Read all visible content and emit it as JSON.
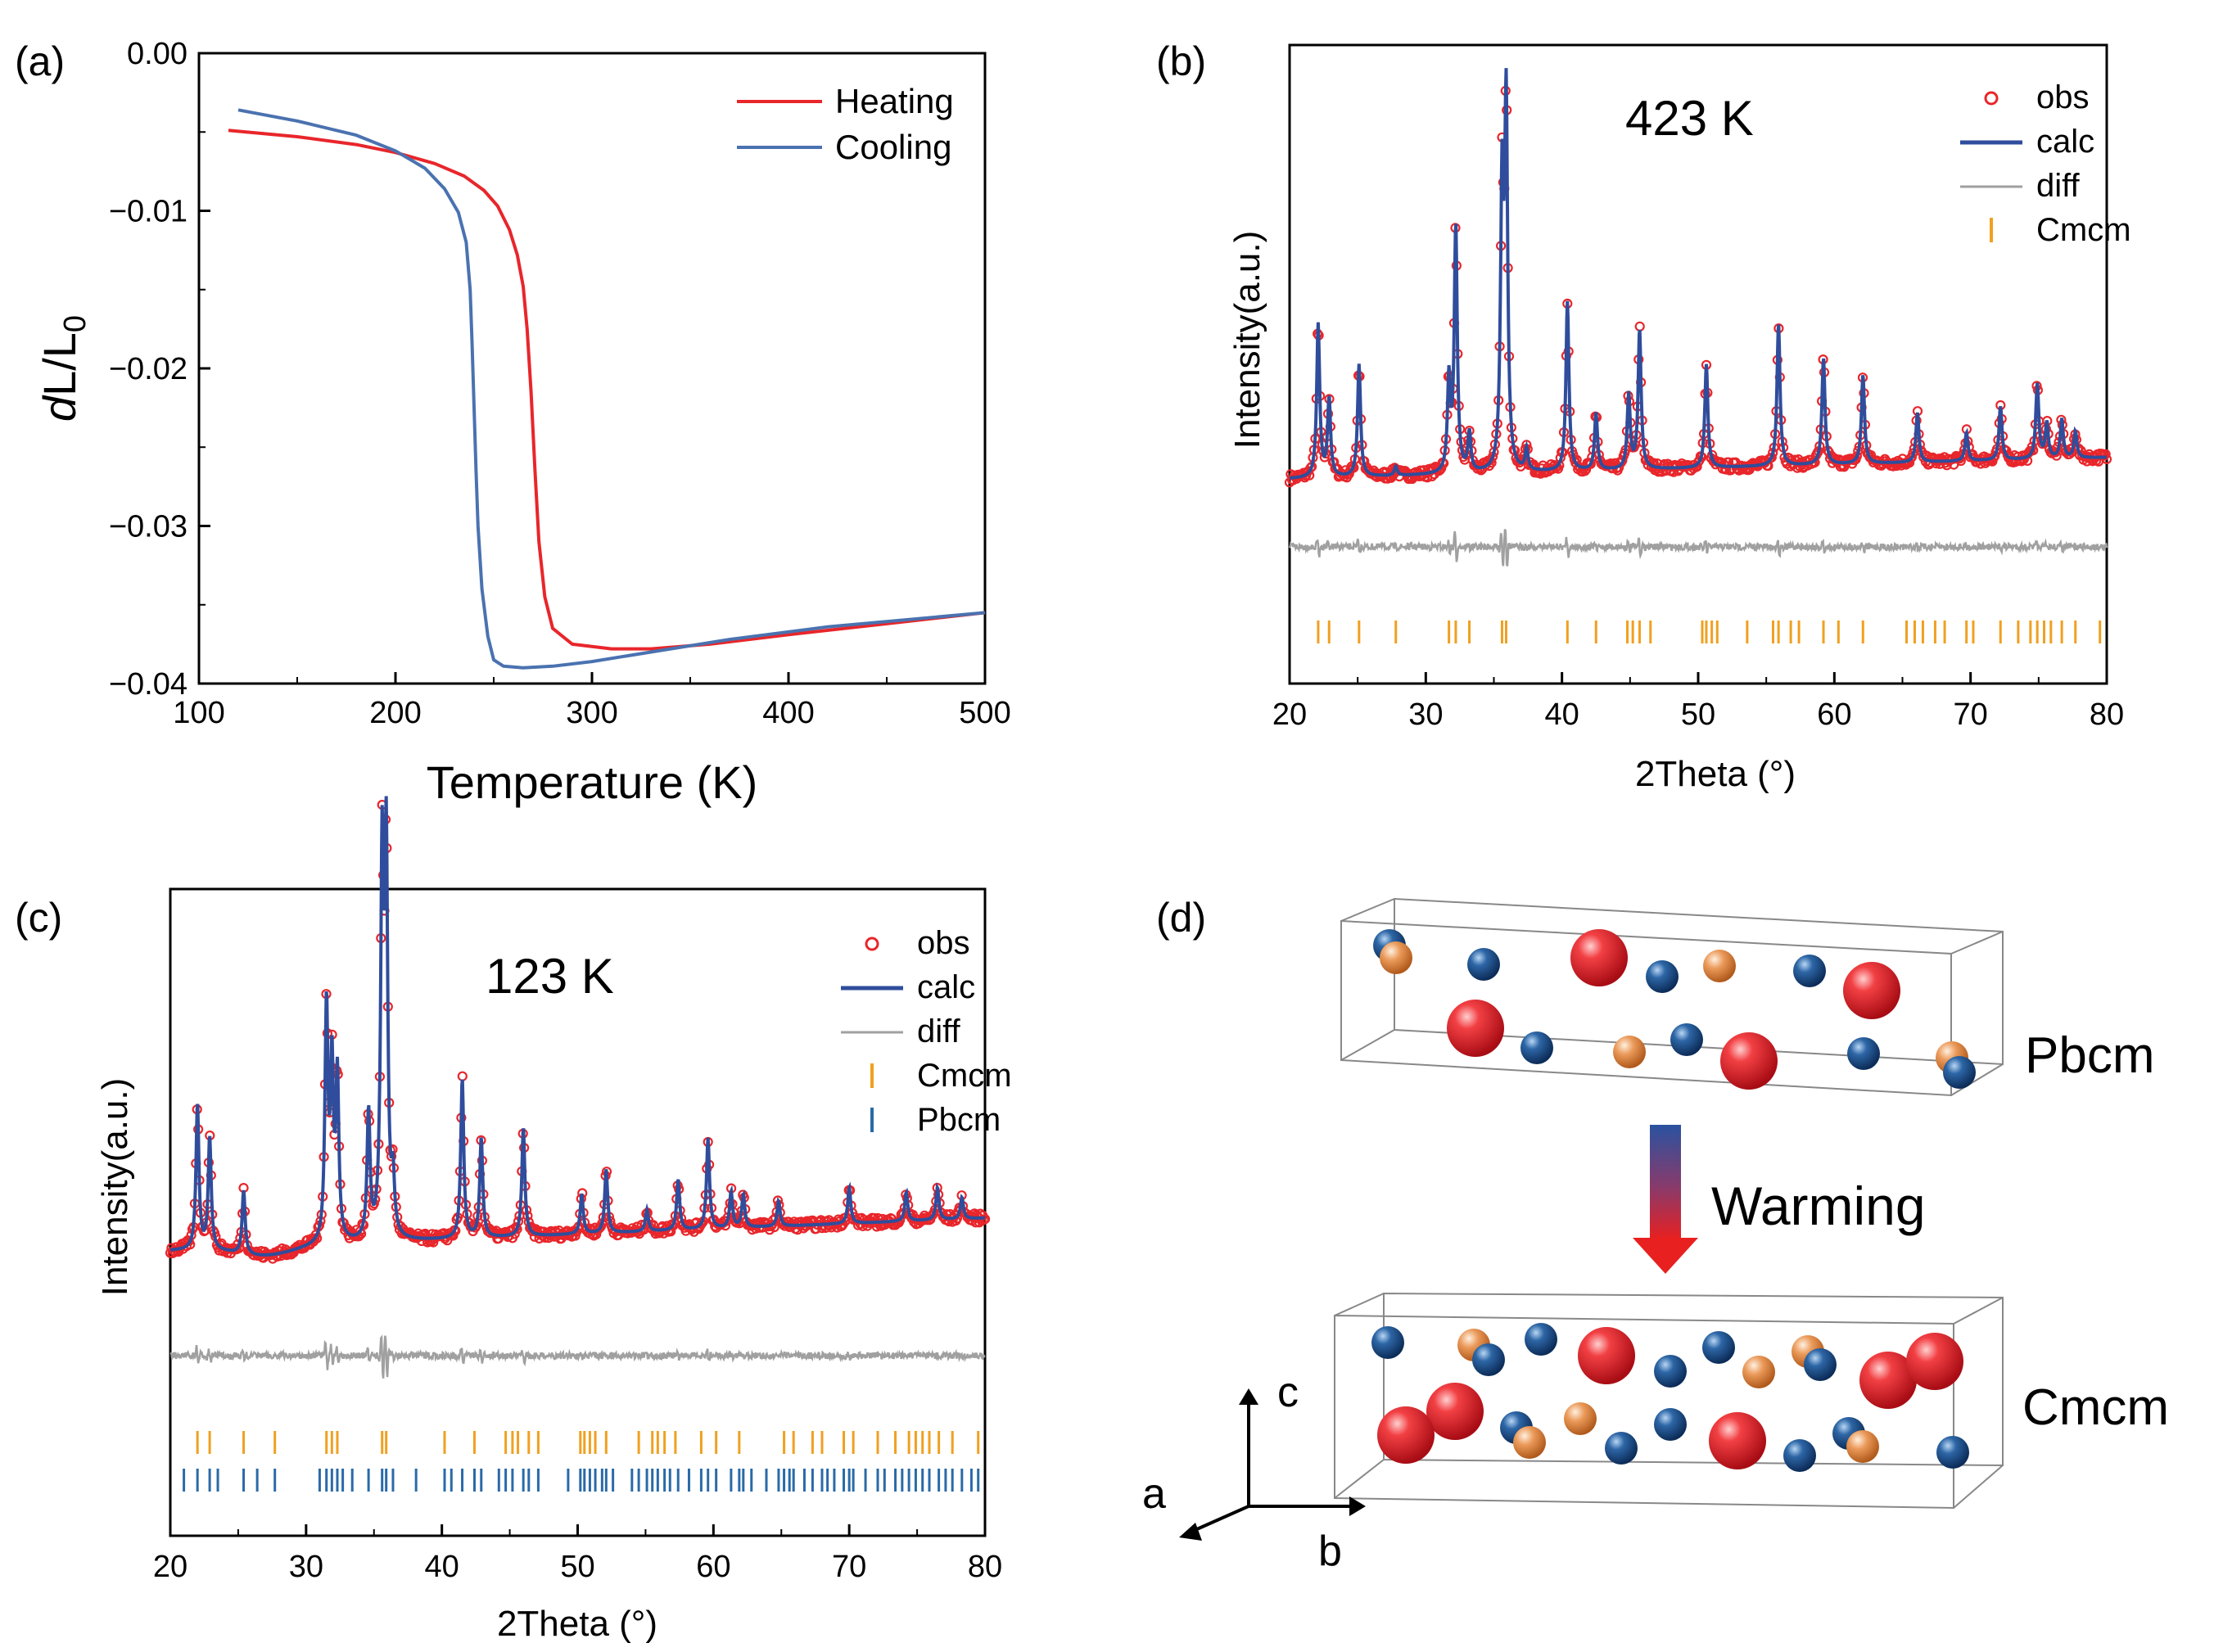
{
  "panels": {
    "a": {
      "letter": "(a)",
      "chart_data": {
        "type": "line",
        "xlabel": "Temperature (K)",
        "ylabel_main": "dL/L",
        "ylabel_sub": "0",
        "xlim": [
          100,
          500
        ],
        "ylim": [
          -0.04,
          0.0
        ],
        "xticks": [
          100,
          200,
          300,
          400,
          500
        ],
        "xtick_labels": [
          "100",
          "200",
          "300",
          "400",
          "500"
        ],
        "yticks": [
          0.0,
          -0.01,
          -0.02,
          -0.03,
          -0.04
        ],
        "ytick_labels": [
          "0.00",
          "−0.01",
          "−0.02",
          "−0.03",
          "−0.04"
        ],
        "series": [
          {
            "name": "Heating",
            "color": "#e8262b",
            "x": [
              115,
              150,
              180,
              200,
              220,
              235,
              245,
              252,
              258,
              262,
              265,
              267,
              269,
              271,
              273,
              276,
              280,
              290,
              310,
              330,
              360,
              400,
              450,
              500
            ],
            "y": [
              -0.0049,
              -0.0053,
              -0.0058,
              -0.0063,
              -0.007,
              -0.0078,
              -0.0087,
              -0.0097,
              -0.0112,
              -0.0128,
              -0.0148,
              -0.0175,
              -0.0215,
              -0.0265,
              -0.031,
              -0.0345,
              -0.0365,
              -0.0375,
              -0.0378,
              -0.0378,
              -0.0375,
              -0.0369,
              -0.0362,
              -0.0355
            ]
          },
          {
            "name": "Cooling",
            "color": "#4a72b0",
            "x": [
              120,
              150,
              180,
              200,
              215,
              225,
              232,
              236,
              238,
              239,
              240,
              241,
              242,
              244,
              247,
              250,
              255,
              265,
              280,
              300,
              330,
              370,
              420,
              500
            ],
            "y": [
              -0.0036,
              -0.0043,
              -0.0052,
              -0.0062,
              -0.0073,
              -0.0086,
              -0.0101,
              -0.012,
              -0.015,
              -0.0185,
              -0.0225,
              -0.0265,
              -0.03,
              -0.034,
              -0.037,
              -0.0385,
              -0.0389,
              -0.039,
              -0.0389,
              -0.0386,
              -0.038,
              -0.0372,
              -0.0364,
              -0.0355
            ]
          }
        ]
      }
    },
    "b": {
      "letter": "(b)",
      "annotation": "423 K",
      "chart_data": {
        "type": "line",
        "xlabel": "2Theta (°)",
        "ylabel": "Intensity(a.u.)",
        "xlim": [
          20,
          80
        ],
        "xticks": [
          20,
          30,
          40,
          50,
          60,
          70,
          80
        ],
        "xtick_labels": [
          "20",
          "30",
          "40",
          "50",
          "60",
          "70",
          "80"
        ],
        "legend": [
          "obs",
          "calc",
          "diff",
          "Cmcm"
        ],
        "colors": {
          "obs": "#e8262b",
          "calc": "#2f4d9c",
          "diff": "#a0a0a0",
          "Cmcm": "#f0a020"
        },
        "baseline": 0.0,
        "baseline_slope": 0.002,
        "peaks": [
          {
            "pos": 22.1,
            "height": 0.86
          },
          {
            "pos": 22.9,
            "height": 0.44
          },
          {
            "pos": 25.1,
            "height": 0.63
          },
          {
            "pos": 27.8,
            "height": 0.05
          },
          {
            "pos": 31.7,
            "height": 0.52
          },
          {
            "pos": 32.2,
            "height": 1.38
          },
          {
            "pos": 33.2,
            "height": 0.22
          },
          {
            "pos": 35.6,
            "height": 1.55
          },
          {
            "pos": 35.9,
            "height": 2.02
          },
          {
            "pos": 37.4,
            "height": 0.12
          },
          {
            "pos": 40.4,
            "height": 0.95
          },
          {
            "pos": 42.5,
            "height": 0.32
          },
          {
            "pos": 44.9,
            "height": 0.42
          },
          {
            "pos": 45.7,
            "height": 0.78
          },
          {
            "pos": 50.6,
            "height": 0.58
          },
          {
            "pos": 55.9,
            "height": 0.8
          },
          {
            "pos": 59.2,
            "height": 0.6
          },
          {
            "pos": 62.1,
            "height": 0.5
          },
          {
            "pos": 66.1,
            "height": 0.28
          },
          {
            "pos": 69.7,
            "height": 0.16
          },
          {
            "pos": 72.2,
            "height": 0.3
          },
          {
            "pos": 74.9,
            "height": 0.42
          },
          {
            "pos": 75.6,
            "height": 0.2
          },
          {
            "pos": 76.7,
            "height": 0.22
          },
          {
            "pos": 77.7,
            "height": 0.15
          }
        ],
        "ticks_Cmcm": [
          22.1,
          22.9,
          25.1,
          27.8,
          31.7,
          32.2,
          33.2,
          35.6,
          35.9,
          40.4,
          42.5,
          44.8,
          45.2,
          45.7,
          46.5,
          50.3,
          50.6,
          51.0,
          51.4,
          53.6,
          55.5,
          55.9,
          56.8,
          57.4,
          59.2,
          60.3,
          62.1,
          65.3,
          65.9,
          66.5,
          67.4,
          68.1,
          69.7,
          70.2,
          72.2,
          73.5,
          74.4,
          74.9,
          75.4,
          75.9,
          76.7,
          77.7,
          79.5
        ]
      }
    },
    "c": {
      "letter": "(c)",
      "annotation": "123 K",
      "chart_data": {
        "type": "line",
        "xlabel": "2Theta (°)",
        "ylabel": "Intensity(a.u.)",
        "xlim": [
          20,
          80
        ],
        "xticks": [
          20,
          30,
          40,
          50,
          60,
          70,
          80
        ],
        "xtick_labels": [
          "20",
          "30",
          "40",
          "50",
          "60",
          "70",
          "80"
        ],
        "legend": [
          "obs",
          "calc",
          "diff",
          "Cmcm",
          "Pbcm"
        ],
        "colors": {
          "obs": "#e8262b",
          "calc": "#2f4d9c",
          "diff": "#a0a0a0",
          "Cmcm": "#f0a020",
          "Pbcm": "#2a6aa8"
        },
        "baseline": 0.0,
        "baseline_slope": 0.003,
        "peaks": [
          {
            "pos": 22.0,
            "height": 0.8
          },
          {
            "pos": 22.9,
            "height": 0.62
          },
          {
            "pos": 25.4,
            "height": 0.35
          },
          {
            "pos": 31.5,
            "height": 1.3
          },
          {
            "pos": 31.9,
            "height": 0.95
          },
          {
            "pos": 32.3,
            "height": 0.9
          },
          {
            "pos": 34.6,
            "height": 0.7
          },
          {
            "pos": 35.6,
            "height": 2.05
          },
          {
            "pos": 35.9,
            "height": 2.1
          },
          {
            "pos": 36.4,
            "height": 0.3
          },
          {
            "pos": 41.5,
            "height": 0.88
          },
          {
            "pos": 42.9,
            "height": 0.55
          },
          {
            "pos": 46.0,
            "height": 0.6
          },
          {
            "pos": 50.3,
            "height": 0.22
          },
          {
            "pos": 52.1,
            "height": 0.35
          },
          {
            "pos": 55.1,
            "height": 0.12
          },
          {
            "pos": 57.4,
            "height": 0.28
          },
          {
            "pos": 59.6,
            "height": 0.5
          },
          {
            "pos": 61.3,
            "height": 0.2
          },
          {
            "pos": 62.2,
            "height": 0.18
          },
          {
            "pos": 64.8,
            "height": 0.14
          },
          {
            "pos": 70.0,
            "height": 0.2
          },
          {
            "pos": 74.2,
            "height": 0.16
          },
          {
            "pos": 76.5,
            "height": 0.18
          },
          {
            "pos": 78.3,
            "height": 0.12
          }
        ],
        "ticks_Cmcm": [
          22.0,
          22.9,
          25.4,
          27.7,
          31.5,
          31.9,
          32.3,
          35.6,
          35.9,
          40.2,
          42.4,
          44.7,
          45.2,
          45.6,
          46.4,
          47.1,
          50.2,
          50.5,
          50.9,
          51.3,
          52.1,
          54.5,
          55.5,
          55.9,
          56.4,
          57.2,
          59.1,
          60.2,
          61.9,
          65.2,
          65.9,
          67.3,
          68.0,
          69.6,
          70.3,
          72.1,
          73.4,
          74.4,
          74.9,
          75.4,
          75.9,
          76.6,
          77.6,
          79.5
        ],
        "ticks_Pbcm": [
          21.0,
          22.0,
          22.9,
          23.5,
          25.4,
          26.4,
          27.7,
          31.0,
          31.5,
          31.9,
          32.3,
          32.7,
          33.4,
          34.6,
          35.6,
          35.9,
          36.4,
          38.1,
          40.2,
          40.7,
          41.5,
          42.4,
          42.9,
          44.2,
          44.7,
          45.2,
          46.0,
          46.4,
          47.1,
          49.3,
          50.2,
          50.5,
          50.9,
          51.3,
          51.8,
          52.1,
          52.6,
          54.0,
          54.5,
          55.1,
          55.5,
          55.9,
          56.4,
          56.8,
          57.4,
          58.2,
          59.1,
          59.6,
          60.2,
          61.3,
          61.9,
          62.2,
          62.8,
          63.9,
          64.8,
          65.2,
          65.6,
          65.9,
          66.7,
          67.3,
          68.0,
          68.4,
          68.9,
          69.6,
          70.0,
          70.3,
          71.2,
          72.1,
          72.6,
          73.4,
          73.9,
          74.4,
          74.9,
          75.4,
          75.9,
          76.6,
          77.1,
          77.6,
          78.3,
          79.0,
          79.5
        ]
      }
    },
    "d": {
      "letter": "(d)",
      "top_label": "Pbcm",
      "bottom_label": "Cmcm",
      "arrow_label": "Warming",
      "axis_labels": {
        "c": "c",
        "a": "a",
        "b": "b"
      },
      "atom_colors": {
        "large_red": "#e3202a",
        "blue": "#2a5f98",
        "orange": "#e8904a"
      }
    }
  }
}
